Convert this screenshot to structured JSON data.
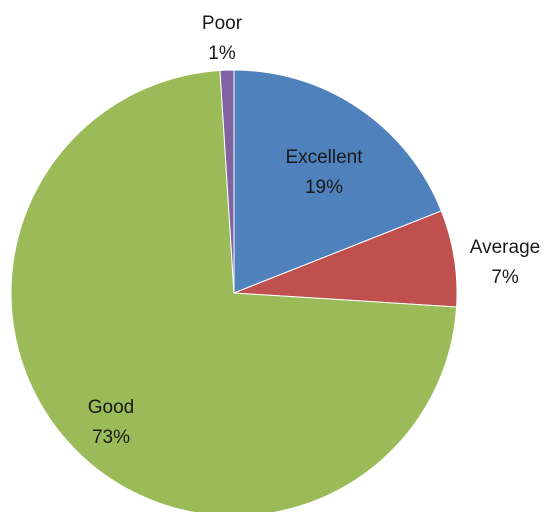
{
  "chart_data": {
    "type": "pie",
    "slices": [
      {
        "label": "Excellent",
        "value": 19,
        "value_label": "19%",
        "color": "#4F81BD"
      },
      {
        "label": "Average",
        "value": 7,
        "value_label": "7%",
        "color": "#C0504D"
      },
      {
        "label": "Good",
        "value": 73,
        "value_label": "73%",
        "color": "#9BBB59"
      },
      {
        "label": "Poor",
        "value": 1,
        "value_label": "1%",
        "color": "#8064A2"
      }
    ],
    "start_angle_deg": 0,
    "direction": "clockwise"
  }
}
